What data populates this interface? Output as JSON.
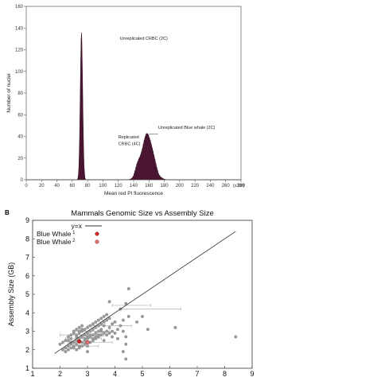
{
  "chart_data": [
    {
      "type": "bar",
      "xlabel": "Mean red PI fluorescence",
      "ylabel": "Number of nuclei",
      "x_multiplier": "(x10³)",
      "xlim": [
        0,
        280
      ],
      "ylim": [
        0,
        160
      ],
      "x_ticks": [
        "0",
        "20",
        "40",
        "60",
        "80",
        "100",
        "120",
        "140",
        "160",
        "180",
        "200",
        "220",
        "240",
        "260",
        "280"
      ],
      "y_ticks": [
        "0",
        "20",
        "40",
        "60",
        "80",
        "100",
        "120",
        "140",
        "160"
      ],
      "annotations": [
        {
          "text": "Unreplicated CRBC (2C)",
          "x": 122,
          "y": 129
        },
        {
          "text": "Unreplicated Blue whale (2C)",
          "x": 172,
          "y": 47
        },
        {
          "text": "Replicated",
          "x": 120,
          "y": 38
        },
        {
          "text": "CRBC (4C)",
          "x": 120,
          "y": 32
        }
      ],
      "peaks": [
        {
          "name": "Unreplicated CRBC (2C)",
          "x": 72,
          "height": 136
        },
        {
          "name": "Replicated CRBC (4C)",
          "x": 145,
          "height": 6
        },
        {
          "name": "Unreplicated Blue whale (2C)",
          "x": 158,
          "height": 42
        }
      ],
      "color": "#4a1530"
    },
    {
      "type": "scatter",
      "panel_label": "B",
      "title": "Mammals Genomic Size vs Assembly Size",
      "xlabel": "",
      "ylabel": "Assembly Size (GB)",
      "xlim": [
        1,
        9
      ],
      "ylim": [
        1,
        9
      ],
      "x_ticks": [
        "1",
        "2",
        "3",
        "4",
        "5",
        "6",
        "7",
        "8",
        "9"
      ],
      "y_ticks": [
        "1",
        "2",
        "3",
        "4",
        "5",
        "6",
        "7",
        "8",
        "9"
      ],
      "legend": {
        "position": "top-left",
        "entries": [
          {
            "label": "y=x",
            "kind": "line",
            "color": "#333333"
          },
          {
            "label": "Blue Whale",
            "sup": "1",
            "kind": "point",
            "color": "#cc2222"
          },
          {
            "label": "Blue Whale",
            "sup": "2",
            "kind": "point",
            "color": "#e07070"
          }
        ]
      },
      "reference_line": {
        "name": "y=x",
        "x": [
          1.8,
          8.4
        ],
        "y": [
          1.8,
          8.4
        ]
      },
      "highlight_points": [
        {
          "name": "Blue Whale 1",
          "x": 2.7,
          "y": 2.45,
          "color": "#cc2222"
        },
        {
          "name": "Blue Whale 2",
          "x": 3.0,
          "y": 2.4,
          "color": "#e07070"
        }
      ],
      "error_bars": [
        {
          "y": 4.2,
          "x_from": 4.2,
          "x_to": 6.4
        },
        {
          "y": 4.4,
          "x_from": 3.9,
          "x_to": 5.3
        },
        {
          "y": 3.3,
          "x_from": 3.0,
          "x_to": 4.6
        },
        {
          "y": 3.0,
          "x_from": 2.5,
          "x_to": 3.8
        },
        {
          "y": 2.8,
          "x_from": 2.0,
          "x_to": 3.6
        },
        {
          "y": 2.6,
          "x_from": 2.2,
          "x_to": 3.5
        },
        {
          "y": 2.4,
          "x_from": 2.3,
          "x_to": 3.9
        },
        {
          "y": 2.2,
          "x_from": 2.5,
          "x_to": 3.4
        }
      ],
      "points": [
        [
          2.1,
          2.0
        ],
        [
          2.2,
          2.1
        ],
        [
          2.3,
          2.2
        ],
        [
          2.4,
          2.3
        ],
        [
          2.5,
          2.4
        ],
        [
          2.6,
          2.5
        ],
        [
          2.4,
          2.6
        ],
        [
          2.6,
          2.7
        ],
        [
          2.7,
          2.6
        ],
        [
          2.8,
          2.7
        ],
        [
          2.9,
          2.8
        ],
        [
          3.0,
          2.9
        ],
        [
          3.1,
          3.0
        ],
        [
          3.2,
          3.1
        ],
        [
          2.5,
          2.2
        ],
        [
          2.6,
          2.3
        ],
        [
          2.7,
          2.2
        ],
        [
          2.8,
          2.4
        ],
        [
          2.9,
          2.5
        ],
        [
          3.0,
          2.6
        ],
        [
          3.1,
          2.7
        ],
        [
          3.2,
          2.8
        ],
        [
          3.3,
          2.9
        ],
        [
          3.4,
          3.0
        ],
        [
          2.3,
          2.5
        ],
        [
          2.4,
          2.4
        ],
        [
          2.7,
          2.9
        ],
        [
          2.8,
          3.0
        ],
        [
          2.9,
          3.1
        ],
        [
          3.0,
          3.2
        ],
        [
          3.1,
          3.3
        ],
        [
          3.2,
          3.4
        ],
        [
          3.3,
          3.5
        ],
        [
          3.4,
          3.6
        ],
        [
          3.5,
          3.7
        ],
        [
          3.6,
          3.8
        ],
        [
          3.7,
          3.9
        ],
        [
          3.3,
          3.2
        ],
        [
          3.5,
          3.1
        ],
        [
          3.6,
          3.3
        ],
        [
          2.2,
          1.9
        ],
        [
          2.3,
          2.0
        ],
        [
          2.4,
          2.1
        ],
        [
          2.5,
          2.1
        ],
        [
          2.6,
          2.0
        ],
        [
          2.7,
          2.1
        ],
        [
          2.8,
          2.2
        ],
        [
          2.9,
          2.3
        ],
        [
          3.0,
          2.2
        ],
        [
          3.1,
          2.4
        ],
        [
          3.2,
          2.5
        ],
        [
          3.3,
          2.6
        ],
        [
          3.4,
          2.7
        ],
        [
          3.5,
          2.8
        ],
        [
          3.6,
          2.9
        ],
        [
          3.7,
          3.0
        ],
        [
          2.6,
          2.8
        ],
        [
          2.5,
          2.9
        ],
        [
          2.7,
          3.0
        ],
        [
          2.8,
          3.1
        ],
        [
          2.9,
          2.6
        ],
        [
          3.0,
          2.7
        ],
        [
          3.1,
          2.8
        ],
        [
          3.2,
          2.6
        ],
        [
          3.3,
          2.7
        ],
        [
          3.4,
          2.8
        ],
        [
          3.5,
          3.0
        ],
        [
          3.8,
          3.2
        ],
        [
          3.9,
          3.4
        ],
        [
          4.0,
          3.5
        ],
        [
          4.1,
          3.1
        ],
        [
          4.2,
          3.3
        ],
        [
          4.3,
          3.6
        ],
        [
          4.5,
          3.8
        ],
        [
          4.0,
          2.9
        ],
        [
          4.3,
          3.0
        ],
        [
          3.9,
          2.7
        ],
        [
          3.6,
          2.5
        ],
        [
          4.4,
          2.3
        ],
        [
          4.1,
          2.6
        ],
        [
          3.8,
          4.6
        ],
        [
          4.5,
          5.3
        ],
        [
          4.4,
          4.5
        ],
        [
          4.2,
          4.2
        ],
        [
          5.0,
          3.8
        ],
        [
          4.8,
          3.5
        ],
        [
          6.2,
          3.2
        ],
        [
          5.2,
          3.1
        ],
        [
          4.4,
          2.7
        ],
        [
          4.3,
          1.9
        ],
        [
          4.4,
          1.5
        ],
        [
          3.0,
          1.9
        ],
        [
          8.4,
          2.7
        ],
        [
          2.0,
          2.3
        ],
        [
          2.1,
          2.4
        ],
        [
          2.2,
          2.5
        ],
        [
          2.3,
          2.7
        ],
        [
          2.4,
          2.8
        ],
        [
          2.5,
          3.0
        ],
        [
          2.6,
          3.1
        ],
        [
          2.7,
          3.2
        ],
        [
          2.8,
          3.3
        ],
        [
          3.6,
          3.5
        ],
        [
          3.7,
          3.6
        ],
        [
          3.8,
          3.7
        ],
        [
          3.4,
          3.3
        ],
        [
          3.5,
          3.4
        ],
        [
          3.9,
          3.0
        ],
        [
          3.7,
          2.8
        ],
        [
          3.8,
          2.9
        ]
      ],
      "point_color": "#9a9a9a"
    }
  ]
}
